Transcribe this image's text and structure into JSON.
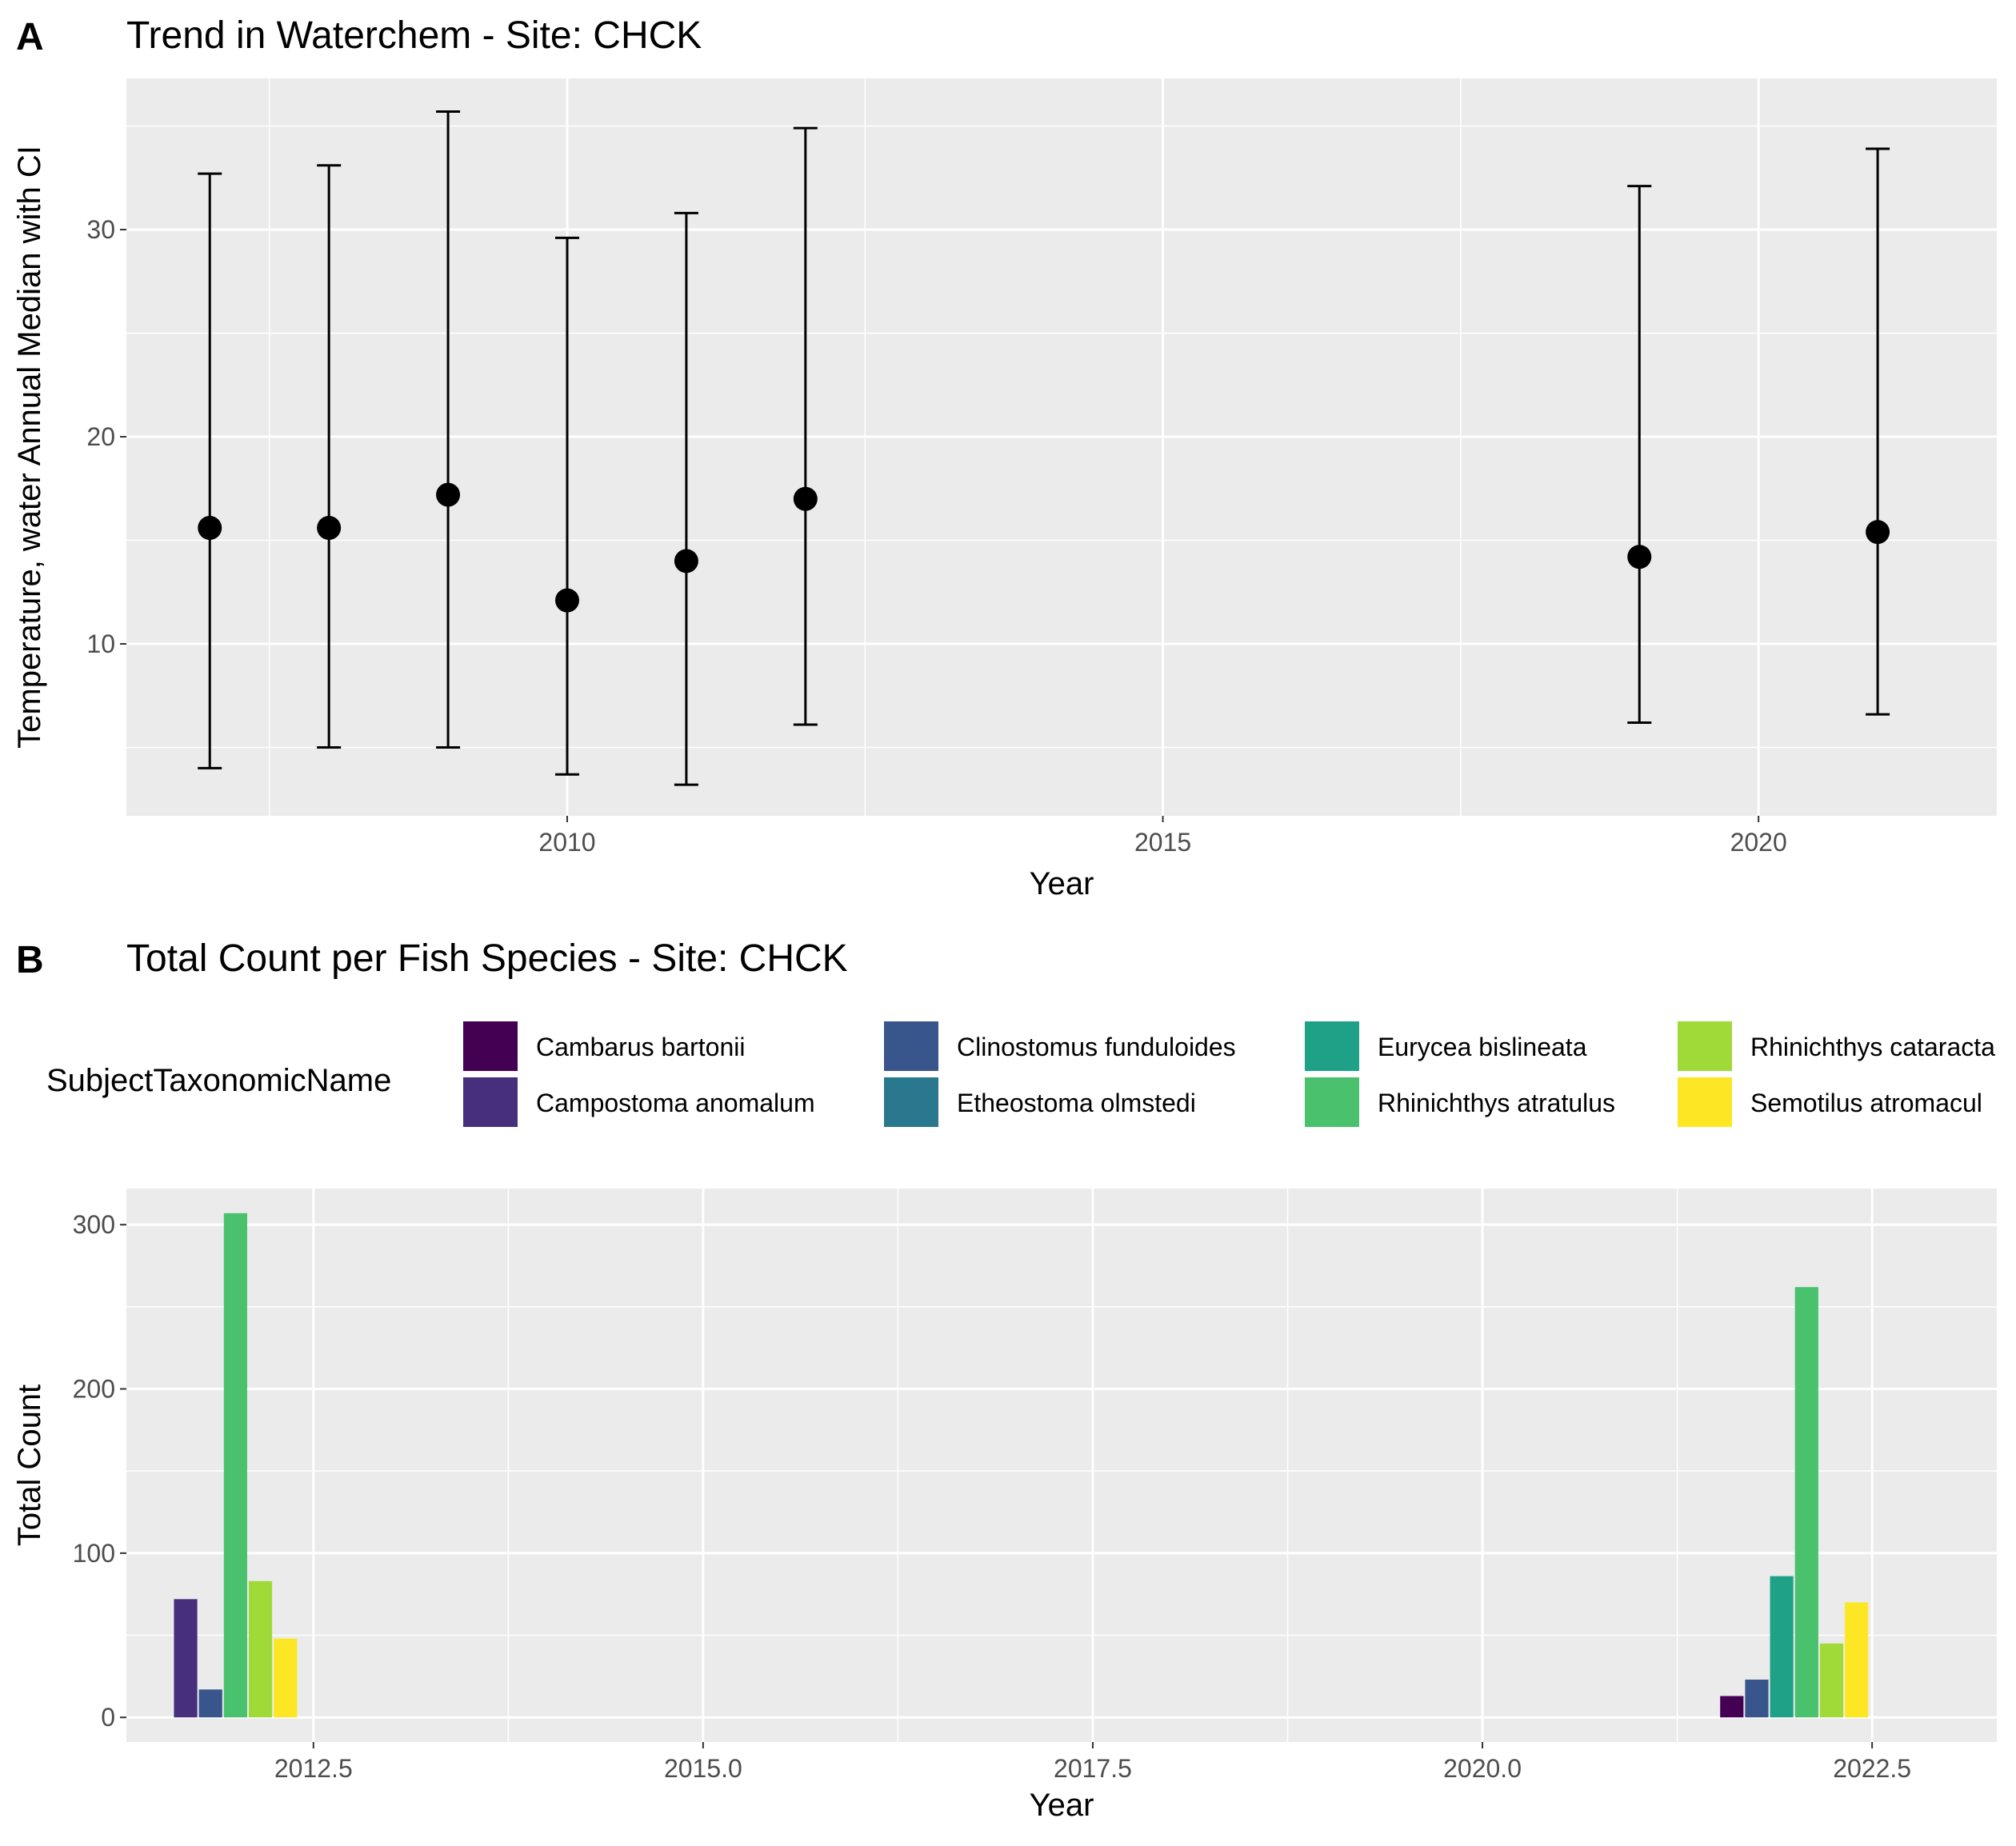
{
  "panel_a": {
    "tag": "A",
    "title": "Trend in Waterchem - Site: CHCK",
    "xlabel": "Year",
    "ylabel": "Temperature, water Annual Median with CI",
    "xticks": [
      "2010",
      "2015",
      "2020"
    ],
    "yticks": [
      "10",
      "20",
      "30"
    ]
  },
  "panel_b": {
    "tag": "B",
    "title": "Total Count per Fish Species - Site: CHCK",
    "xlabel": "Year",
    "ylabel": "Total Count",
    "xticks": [
      "2012.5",
      "2015.0",
      "2017.5",
      "2020.0",
      "2022.5"
    ],
    "yticks": [
      "0",
      "100",
      "200",
      "300"
    ],
    "legend_title": "SubjectTaxonomicName",
    "legend": [
      {
        "label": "Cambarus bartonii",
        "color": "#440154"
      },
      {
        "label": "Campostoma anomalum",
        "color": "#472F7D"
      },
      {
        "label": "Clinostomus funduloides",
        "color": "#39568C"
      },
      {
        "label": "Etheostoma olmstedi",
        "color": "#2A788E"
      },
      {
        "label": "Eurycea bislineata",
        "color": "#1FA187"
      },
      {
        "label": "Rhinichthys atratulus",
        "color": "#4AC16D"
      },
      {
        "label": "Rhinichthys cataracta",
        "color": "#A0DA39"
      },
      {
        "label": "Semotilus atromacul",
        "color": "#FDE725"
      }
    ]
  },
  "chart_data": [
    {
      "type": "scatter",
      "title": "Trend in Waterchem - Site: CHCK",
      "xlabel": "Year",
      "ylabel": "Temperature, water Annual Median with CI",
      "xlim": [
        2006.3,
        2022.0
      ],
      "ylim": [
        1.7,
        37.3
      ],
      "grid": true,
      "error_bars": true,
      "points": [
        {
          "x": 2007,
          "y": 15.6,
          "ymin": 4.0,
          "ymax": 32.7
        },
        {
          "x": 2008,
          "y": 15.6,
          "ymin": 5.0,
          "ymax": 33.1
        },
        {
          "x": 2009,
          "y": 17.2,
          "ymin": 5.0,
          "ymax": 35.7
        },
        {
          "x": 2010,
          "y": 12.1,
          "ymin": 3.7,
          "ymax": 29.6
        },
        {
          "x": 2011,
          "y": 14.0,
          "ymin": 3.2,
          "ymax": 30.8
        },
        {
          "x": 2012,
          "y": 17.0,
          "ymin": 6.1,
          "ymax": 34.9
        },
        {
          "x": 2019,
          "y": 14.2,
          "ymin": 6.2,
          "ymax": 32.1
        },
        {
          "x": 2021,
          "y": 15.4,
          "ymin": 6.6,
          "ymax": 33.9
        }
      ]
    },
    {
      "type": "bar",
      "title": "Total Count per Fish Species - Site: CHCK",
      "xlabel": "Year",
      "ylabel": "Total Count",
      "xlim": [
        2011.3,
        2023.3
      ],
      "ylim": [
        -15,
        322
      ],
      "grid": true,
      "legend_position": "top",
      "bar_width_years": 0.16,
      "groups": [
        {
          "x": 2012,
          "bars": [
            {
              "species": "Campostoma anomalum",
              "value": 72
            },
            {
              "species": "Clinostomus funduloides",
              "value": 17
            },
            {
              "species": "Rhinichthys atratulus",
              "value": 307
            },
            {
              "species": "Rhinichthys cataracta",
              "value": 83
            },
            {
              "species": "Semotilus atromacul",
              "value": 48
            }
          ]
        },
        {
          "x": 2022,
          "bars": [
            {
              "species": "Cambarus bartonii",
              "value": 13
            },
            {
              "species": "Clinostomus funduloides",
              "value": 23
            },
            {
              "species": "Eurycea bislineata",
              "value": 86
            },
            {
              "species": "Rhinichthys atratulus",
              "value": 262
            },
            {
              "species": "Rhinichthys cataracta",
              "value": 45
            },
            {
              "species": "Semotilus atromacul",
              "value": 70
            }
          ]
        }
      ]
    }
  ]
}
